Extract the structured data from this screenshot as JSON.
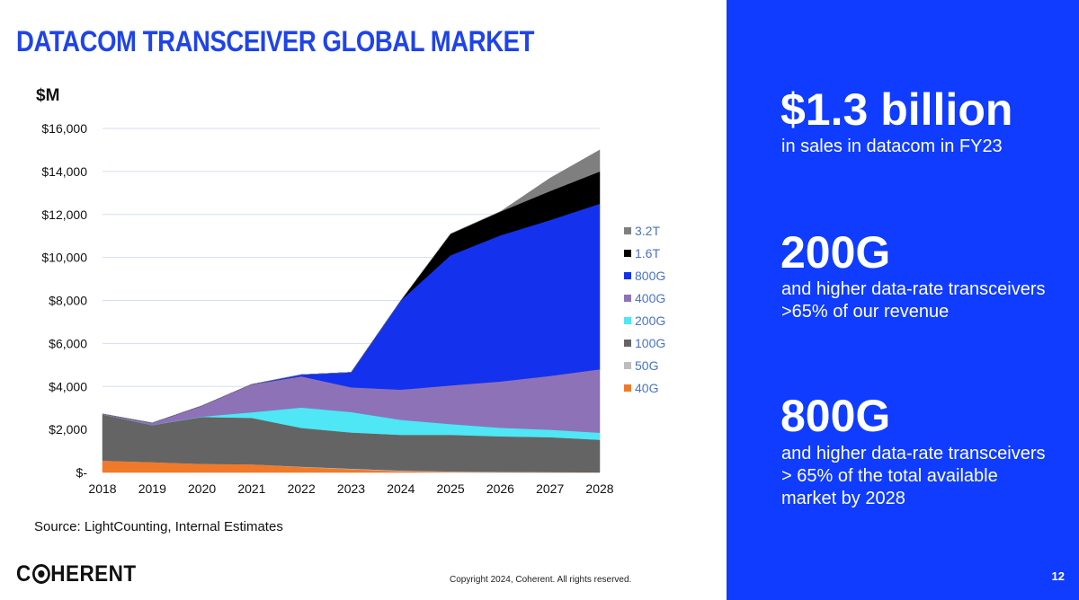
{
  "title": "DATACOM TRANSCEIVER GLOBAL MARKET",
  "unit_label": "$M",
  "source": "Source: LightCounting, Internal Estimates",
  "logo": {
    "before": "C",
    "after": "HERENT"
  },
  "copyright": "Copyright 2024, Coherent. All rights reserved.",
  "page_number": "12",
  "panel": {
    "background": "#0f3cff",
    "stats": [
      {
        "value": "$1.3 billion",
        "text": "in sales in datacom in FY23"
      },
      {
        "value": "200G",
        "text": "and higher data-rate transceivers >65% of our revenue"
      },
      {
        "value": "800G",
        "text": "and higher data-rate transceivers > 65% of the total available market by 2028"
      }
    ]
  },
  "chart_data": {
    "type": "area",
    "stacked": true,
    "x": [
      "2018",
      "2019",
      "2020",
      "2021",
      "2022",
      "2023",
      "2024",
      "2025",
      "2026",
      "2027",
      "2028"
    ],
    "ylim": [
      0,
      16000
    ],
    "yticks": [
      0,
      2000,
      4000,
      6000,
      8000,
      10000,
      12000,
      14000,
      16000
    ],
    "ytick_labels": [
      "$-",
      "$2,000",
      "$4,000",
      "$6,000",
      "$8,000",
      "$10,000",
      "$12,000",
      "$14,000",
      "$16,000"
    ],
    "grid": true,
    "legend_position": "right",
    "series": [
      {
        "name": "40G",
        "color": "#f07a2a",
        "values": [
          550,
          480,
          400,
          380,
          250,
          150,
          60,
          20,
          10,
          0,
          0
        ]
      },
      {
        "name": "50G",
        "color": "#bdbdbd",
        "values": [
          0,
          0,
          0,
          0,
          20,
          30,
          30,
          30,
          20,
          20,
          10
        ]
      },
      {
        "name": "100G",
        "color": "#646464",
        "values": [
          2150,
          1720,
          2180,
          2160,
          1800,
          1680,
          1660,
          1700,
          1650,
          1620,
          1510
        ]
      },
      {
        "name": "200G",
        "color": "#4fe6f5",
        "values": [
          0,
          0,
          20,
          260,
          950,
          950,
          700,
          500,
          400,
          350,
          330
        ]
      },
      {
        "name": "400G",
        "color": "#8e72b8",
        "values": [
          20,
          100,
          500,
          1300,
          1450,
          1150,
          1400,
          1800,
          2150,
          2500,
          2950
        ]
      },
      {
        "name": "800G",
        "color": "#1432ee",
        "values": [
          0,
          0,
          0,
          0,
          80,
          700,
          4150,
          6050,
          6800,
          7250,
          7700
        ]
      },
      {
        "name": "1.6T",
        "color": "#000000",
        "values": [
          0,
          0,
          0,
          0,
          0,
          0,
          0,
          1000,
          1100,
          1350,
          1500
        ]
      },
      {
        "name": "3.2T",
        "color": "#7f7f7f",
        "values": [
          0,
          0,
          0,
          0,
          0,
          0,
          0,
          0,
          0,
          600,
          1000
        ]
      }
    ]
  }
}
